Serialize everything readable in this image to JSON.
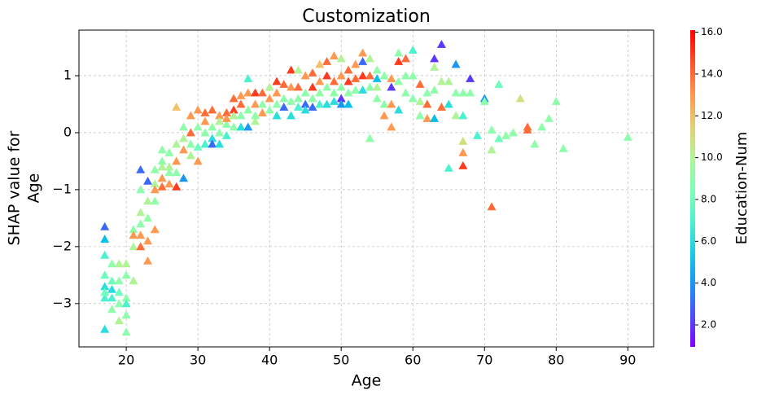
{
  "chart_data": {
    "type": "scatter",
    "title": "Customization",
    "xlabel": "Age",
    "ylabel": [
      "SHAP value for",
      "Age"
    ],
    "marker": "triangle",
    "colormap": "rainbow",
    "grid": true,
    "xlim": [
      13.4,
      93.6
    ],
    "ylim": [
      -3.76,
      1.8
    ],
    "xticks": [
      20,
      30,
      40,
      50,
      60,
      70,
      80,
      90
    ],
    "yticks": [
      {
        "value": -3,
        "label": "−3"
      },
      {
        "value": -2,
        "label": "−2"
      },
      {
        "value": -1,
        "label": "−1"
      },
      0,
      1
    ],
    "colorbar": {
      "label": "Education-Num",
      "clim": [
        0.95,
        16.1
      ],
      "ticks": [
        {
          "value": 2,
          "label": "2.0"
        },
        {
          "value": 4,
          "label": "4.0"
        },
        {
          "value": 6,
          "label": "6.0"
        },
        {
          "value": 8,
          "label": "8.0"
        },
        {
          "value": 10,
          "label": "10.0"
        },
        {
          "value": 12,
          "label": "12.0"
        },
        {
          "value": 14,
          "label": "14.0"
        },
        {
          "value": 16,
          "label": "16.0"
        }
      ]
    },
    "x": [
      17,
      17,
      17,
      17,
      17,
      17,
      17,
      17,
      18,
      18,
      18,
      18,
      18,
      19,
      19,
      19,
      19,
      19,
      20,
      20,
      20,
      20,
      20,
      20,
      21,
      21,
      21,
      21,
      22,
      22,
      22,
      22,
      22,
      22,
      23,
      23,
      23,
      23,
      23,
      24,
      24,
      24,
      24,
      24,
      25,
      25,
      25,
      25,
      25,
      26,
      26,
      26,
      26,
      27,
      27,
      27,
      27,
      27,
      28,
      28,
      28,
      28,
      29,
      29,
      29,
      29,
      30,
      30,
      30,
      30,
      31,
      31,
      31,
      31,
      32,
      32,
      32,
      32,
      33,
      33,
      33,
      33,
      34,
      34,
      34,
      34,
      35,
      35,
      35,
      35,
      36,
      36,
      36,
      36,
      37,
      37,
      37,
      37,
      38,
      38,
      38,
      38,
      39,
      39,
      39,
      40,
      40,
      40,
      41,
      41,
      41,
      41,
      42,
      42,
      42,
      43,
      43,
      43,
      43,
      44,
      44,
      44,
      44,
      45,
      45,
      45,
      45,
      46,
      46,
      46,
      46,
      47,
      47,
      47,
      47,
      48,
      48,
      48,
      48,
      49,
      49,
      49,
      49,
      50,
      50,
      50,
      50,
      50,
      51,
      51,
      51,
      51,
      52,
      52,
      52,
      53,
      53,
      53,
      53,
      54,
      54,
      54,
      54,
      55,
      55,
      55,
      55,
      56,
      56,
      56,
      57,
      57,
      57,
      57,
      58,
      58,
      58,
      58,
      59,
      59,
      59,
      60,
      60,
      60,
      61,
      61,
      61,
      62,
      62,
      62,
      63,
      63,
      63,
      63,
      64,
      64,
      64,
      65,
      65,
      65,
      66,
      66,
      66,
      67,
      67,
      67,
      67,
      67,
      68,
      68,
      69,
      70,
      70,
      71,
      71,
      71,
      72,
      72,
      73,
      74,
      75,
      76,
      76,
      77,
      78,
      79,
      80,
      81,
      90
    ],
    "values": [
      -1.65,
      -1.87,
      -2.15,
      -2.5,
      -2.7,
      -2.9,
      -3.45,
      -2.8,
      -2.3,
      -2.6,
      -2.9,
      -3.1,
      -2.75,
      -2.3,
      -2.6,
      -3.0,
      -3.3,
      -2.8,
      -2.5,
      -2.9,
      -3.2,
      -3.5,
      -2.3,
      -3.0,
      -1.7,
      -2.0,
      -2.6,
      -1.8,
      -0.65,
      -1.0,
      -1.4,
      -1.8,
      -2.0,
      -1.6,
      -0.85,
      -1.2,
      -2.25,
      -1.5,
      -1.9,
      -0.65,
      -0.9,
      -1.0,
      -1.2,
      -1.7,
      -0.5,
      -0.8,
      -0.95,
      -0.6,
      -0.3,
      -0.35,
      -0.6,
      -0.9,
      -0.7,
      0.45,
      -0.95,
      -0.2,
      -0.5,
      -0.7,
      0.1,
      -0.3,
      -0.8,
      -0.1,
      0.3,
      -0.2,
      0.0,
      -0.4,
      0.4,
      0.1,
      -0.25,
      -0.5,
      0.35,
      0.0,
      -0.2,
      0.2,
      0.4,
      0.1,
      -0.1,
      -0.2,
      0.3,
      0.0,
      -0.2,
      0.2,
      0.35,
      0.15,
      -0.05,
      0.25,
      0.6,
      0.4,
      0.1,
      0.3,
      0.65,
      0.3,
      0.1,
      0.5,
      0.95,
      0.4,
      0.1,
      0.7,
      0.7,
      0.5,
      0.3,
      0.2,
      0.7,
      0.5,
      0.35,
      0.8,
      0.6,
      0.4,
      0.9,
      0.7,
      0.5,
      0.3,
      0.85,
      0.6,
      0.45,
      1.1,
      0.8,
      0.55,
      0.3,
      1.1,
      0.8,
      0.6,
      0.45,
      1.0,
      0.7,
      0.5,
      0.4,
      1.05,
      0.8,
      0.6,
      0.45,
      1.2,
      0.9,
      0.7,
      0.5,
      1.25,
      1.0,
      0.8,
      0.5,
      1.35,
      0.9,
      0.7,
      0.55,
      1.3,
      1.0,
      0.8,
      0.6,
      0.5,
      1.1,
      0.9,
      0.7,
      0.5,
      1.2,
      0.95,
      0.75,
      1.4,
      1.25,
      1.0,
      0.75,
      1.3,
      1.0,
      0.8,
      -0.1,
      1.1,
      0.95,
      0.8,
      0.6,
      1.0,
      0.5,
      0.3,
      0.95,
      0.8,
      0.5,
      0.1,
      1.4,
      1.25,
      0.9,
      0.4,
      1.3,
      1.0,
      0.7,
      1.45,
      1.0,
      0.6,
      0.85,
      0.55,
      0.3,
      0.7,
      0.5,
      0.25,
      1.3,
      1.15,
      0.75,
      0.25,
      1.55,
      0.9,
      0.45,
      0.9,
      0.5,
      -0.62,
      1.2,
      0.7,
      0.3,
      0.7,
      -0.15,
      -0.35,
      -0.58,
      0.3,
      0.95,
      0.7,
      -0.05,
      0.6,
      0.55,
      0.05,
      -0.3,
      -1.3,
      0.85,
      -0.1,
      -0.05,
      0.0,
      0.6,
      0.1,
      0.05,
      -0.2,
      0.1,
      0.25,
      0.55,
      -0.28,
      -0.08
    ],
    "color_values": [
      3,
      5,
      7,
      8,
      6,
      7,
      6,
      8,
      9,
      8,
      7,
      9,
      6,
      10,
      9,
      9,
      10,
      8,
      9,
      9,
      9,
      9,
      10,
      7,
      9,
      10,
      10,
      13,
      3,
      9,
      10,
      13,
      14,
      9,
      3,
      10,
      13,
      9,
      13,
      9,
      10,
      13,
      9,
      13,
      9,
      13,
      14,
      10,
      9,
      9,
      10,
      13,
      9,
      12,
      15,
      10,
      13,
      9,
      9,
      13,
      4,
      10,
      13,
      9,
      14,
      10,
      13,
      9,
      8,
      13,
      14,
      9,
      7,
      13,
      14,
      9,
      6,
      3,
      13,
      9,
      6,
      10,
      14,
      9,
      7,
      13,
      14,
      15,
      9,
      10,
      13,
      9,
      6,
      14,
      7,
      9,
      4,
      13,
      15,
      13,
      9,
      10,
      14,
      9,
      13,
      10,
      13,
      9,
      15,
      13,
      9,
      6,
      14,
      9,
      3,
      15,
      13,
      9,
      6,
      10,
      14,
      9,
      7,
      13,
      9,
      3,
      6,
      14,
      15,
      9,
      3,
      12,
      13,
      9,
      7,
      14,
      15,
      9,
      6,
      13,
      14,
      9,
      6,
      10,
      13,
      9,
      2,
      4,
      14,
      15,
      9,
      5,
      13,
      14,
      9,
      13,
      3,
      15,
      6,
      10,
      14,
      9,
      9,
      9,
      5,
      10,
      9,
      9,
      9,
      13,
      13,
      2,
      13,
      13,
      9,
      15,
      9,
      6,
      14,
      9,
      9,
      7,
      9,
      9,
      14,
      10,
      9,
      9,
      14,
      13,
      2,
      10,
      9,
      5,
      2,
      10,
      14,
      10,
      6,
      7,
      4,
      9,
      10,
      9,
      11,
      13,
      15,
      7,
      2,
      9,
      7,
      4,
      9,
      9,
      10,
      14,
      8,
      8,
      9,
      9,
      11,
      14,
      14,
      9,
      9,
      9,
      9,
      9,
      9
    ]
  }
}
